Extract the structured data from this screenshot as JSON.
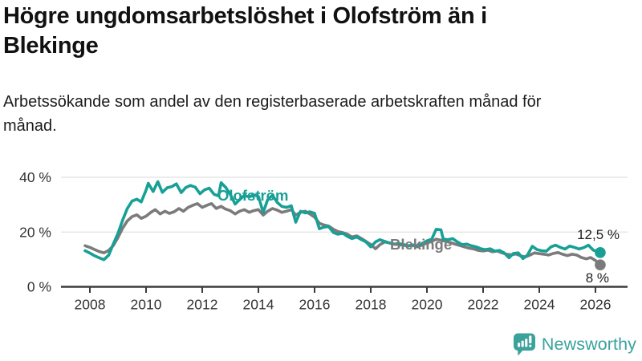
{
  "title": "Högre ungdomsarbetslöshet i Olofström än i Blekinge",
  "subtitle": "Arbetssökande som andel av den registerbaserade arbetskraften månad för månad.",
  "branding": {
    "logo_text": "Newsworthy",
    "logo_color": "#3AA29B",
    "logo_icon": "bar-chart-speech-bubble-icon"
  },
  "chart_data": {
    "type": "line",
    "title": "Högre ungdomsarbetslöshet i Olofström än i Blekinge",
    "subtitle": "Arbetssökande som andel av den registerbaserade arbetskraften månad för månad.",
    "xlabel": "",
    "ylabel": "",
    "x_unit": "year",
    "y_unit": "%",
    "xlim": [
      2007.7,
      2026.6
    ],
    "ylim": [
      0,
      44
    ],
    "grid": "horizontal",
    "legend_position": "inline",
    "x_ticks": [
      2008,
      2010,
      2012,
      2014,
      2016,
      2018,
      2020,
      2022,
      2024,
      2026
    ],
    "y_ticks": [
      {
        "value": 0,
        "label": "0 %"
      },
      {
        "value": 20,
        "label": "20 %"
      },
      {
        "value": 40,
        "label": "40 %"
      }
    ],
    "series": [
      {
        "id": "olofstrom",
        "name": "Olofström",
        "color": "#18A096",
        "end_value": 12.5,
        "end_label": "12,5 %",
        "points": [
          [
            2007.83,
            13.2
          ],
          [
            2008,
            12.3
          ],
          [
            2008.17,
            11.3
          ],
          [
            2008.33,
            10.6
          ],
          [
            2008.5,
            9.9
          ],
          [
            2008.67,
            11.6
          ],
          [
            2008.83,
            15.5
          ],
          [
            2009,
            19.5
          ],
          [
            2009.17,
            24.5
          ],
          [
            2009.33,
            28.5
          ],
          [
            2009.5,
            31.3
          ],
          [
            2009.67,
            32
          ],
          [
            2009.83,
            31
          ],
          [
            2010,
            35.3
          ],
          [
            2010.08,
            37.8
          ],
          [
            2010.25,
            34.8
          ],
          [
            2010.42,
            38.4
          ],
          [
            2010.58,
            34.5
          ],
          [
            2010.75,
            36.2
          ],
          [
            2010.92,
            36.6
          ],
          [
            2011.08,
            37.6
          ],
          [
            2011.25,
            34.4
          ],
          [
            2011.42,
            36.3
          ],
          [
            2011.58,
            37
          ],
          [
            2011.75,
            36.4
          ],
          [
            2011.92,
            34
          ],
          [
            2012.08,
            35.4
          ],
          [
            2012.25,
            36
          ],
          [
            2012.42,
            33.8
          ],
          [
            2012.58,
            33.2
          ],
          [
            2012.67,
            38
          ],
          [
            2012.83,
            36.4
          ],
          [
            2013,
            33.8
          ],
          [
            2013.17,
            30.2
          ],
          [
            2013.33,
            31.8
          ],
          [
            2013.5,
            33.4
          ],
          [
            2013.67,
            32.8
          ],
          [
            2013.83,
            33.6
          ],
          [
            2014,
            33
          ],
          [
            2014.17,
            27.2
          ],
          [
            2014.33,
            31.8
          ],
          [
            2014.5,
            33.4
          ],
          [
            2014.67,
            30.8
          ],
          [
            2014.83,
            29.4
          ],
          [
            2015,
            29
          ],
          [
            2015.17,
            29.6
          ],
          [
            2015.33,
            23.6
          ],
          [
            2015.5,
            27.6
          ],
          [
            2015.67,
            27
          ],
          [
            2015.83,
            27.4
          ],
          [
            2016,
            26.8
          ],
          [
            2016.17,
            21.2
          ],
          [
            2016.33,
            21.8
          ],
          [
            2016.5,
            22
          ],
          [
            2016.67,
            19.8
          ],
          [
            2016.83,
            19.2
          ],
          [
            2017,
            19.6
          ],
          [
            2017.17,
            18.4
          ],
          [
            2017.33,
            17.6
          ],
          [
            2017.5,
            18.2
          ],
          [
            2017.67,
            17.2
          ],
          [
            2017.83,
            16.4
          ],
          [
            2018,
            14.6
          ],
          [
            2018.17,
            16.4
          ],
          [
            2018.33,
            17.2
          ],
          [
            2018.5,
            16.6
          ],
          [
            2018.67,
            16
          ],
          [
            2018.83,
            15.6
          ],
          [
            2019,
            15.8
          ],
          [
            2019.17,
            15.4
          ],
          [
            2019.33,
            15
          ],
          [
            2019.5,
            15.3
          ],
          [
            2019.67,
            14.9
          ],
          [
            2019.83,
            15.8
          ],
          [
            2020,
            16.8
          ],
          [
            2020.17,
            17.4
          ],
          [
            2020.33,
            21
          ],
          [
            2020.5,
            20.8
          ],
          [
            2020.58,
            17.4
          ],
          [
            2020.75,
            17.2
          ],
          [
            2020.92,
            17.6
          ],
          [
            2021.08,
            16.4
          ],
          [
            2021.25,
            15.4
          ],
          [
            2021.42,
            15.6
          ],
          [
            2021.58,
            15
          ],
          [
            2021.75,
            14.6
          ],
          [
            2021.92,
            13.9
          ],
          [
            2022.08,
            13.6
          ],
          [
            2022.25,
            13.9
          ],
          [
            2022.42,
            13
          ],
          [
            2022.58,
            13.3
          ],
          [
            2022.75,
            12.4
          ],
          [
            2022.92,
            10.6
          ],
          [
            2023.08,
            12.2
          ],
          [
            2023.25,
            12.4
          ],
          [
            2023.42,
            10.3
          ],
          [
            2023.58,
            11.6
          ],
          [
            2023.75,
            14.8
          ],
          [
            2023.92,
            13.6
          ],
          [
            2024.08,
            13.2
          ],
          [
            2024.25,
            13
          ],
          [
            2024.42,
            14.6
          ],
          [
            2024.58,
            15.2
          ],
          [
            2024.75,
            14.4
          ],
          [
            2024.92,
            13.8
          ],
          [
            2025.08,
            14.9
          ],
          [
            2025.25,
            14.4
          ],
          [
            2025.42,
            13.8
          ],
          [
            2025.58,
            14.3
          ],
          [
            2025.75,
            15.2
          ],
          [
            2025.92,
            13.4
          ],
          [
            2026.08,
            12.9
          ],
          [
            2026.17,
            12.5
          ]
        ]
      },
      {
        "id": "blekinge",
        "name": "Blekinge",
        "color": "#7B7B7B",
        "end_value": 8,
        "end_label": "8 %",
        "points": [
          [
            2007.83,
            15
          ],
          [
            2008,
            14.4
          ],
          [
            2008.17,
            13.6
          ],
          [
            2008.33,
            12.9
          ],
          [
            2008.5,
            12.4
          ],
          [
            2008.67,
            13.3
          ],
          [
            2008.83,
            15
          ],
          [
            2009,
            18
          ],
          [
            2009.17,
            21.5
          ],
          [
            2009.33,
            24
          ],
          [
            2009.5,
            25.6
          ],
          [
            2009.67,
            26.3
          ],
          [
            2009.83,
            25
          ],
          [
            2010,
            25.8
          ],
          [
            2010.17,
            27.2
          ],
          [
            2010.33,
            28.2
          ],
          [
            2010.5,
            26.6
          ],
          [
            2010.67,
            27.6
          ],
          [
            2010.83,
            26.8
          ],
          [
            2011,
            27.4
          ],
          [
            2011.17,
            28.6
          ],
          [
            2011.33,
            27.6
          ],
          [
            2011.5,
            29
          ],
          [
            2011.67,
            29.8
          ],
          [
            2011.83,
            30.4
          ],
          [
            2012,
            29
          ],
          [
            2012.17,
            29.8
          ],
          [
            2012.33,
            30.4
          ],
          [
            2012.5,
            28.6
          ],
          [
            2012.67,
            29.4
          ],
          [
            2012.83,
            28.4
          ],
          [
            2013,
            27.8
          ],
          [
            2013.17,
            26.6
          ],
          [
            2013.33,
            27.6
          ],
          [
            2013.5,
            28.2
          ],
          [
            2013.67,
            27.2
          ],
          [
            2013.83,
            27.8
          ],
          [
            2014,
            28.2
          ],
          [
            2014.17,
            26.2
          ],
          [
            2014.33,
            27.6
          ],
          [
            2014.5,
            28.6
          ],
          [
            2014.67,
            28
          ],
          [
            2014.83,
            27.2
          ],
          [
            2015,
            27.6
          ],
          [
            2015.17,
            28.2
          ],
          [
            2015.33,
            26.2
          ],
          [
            2015.5,
            27.2
          ],
          [
            2015.67,
            27.6
          ],
          [
            2015.83,
            26.6
          ],
          [
            2016,
            25.4
          ],
          [
            2016.17,
            23.2
          ],
          [
            2016.33,
            22.6
          ],
          [
            2016.5,
            22.2
          ],
          [
            2016.67,
            21
          ],
          [
            2016.83,
            20.2
          ],
          [
            2017,
            19.8
          ],
          [
            2017.17,
            19.2
          ],
          [
            2017.33,
            18.2
          ],
          [
            2017.5,
            18.6
          ],
          [
            2017.67,
            17.6
          ],
          [
            2017.83,
            16.6
          ],
          [
            2018,
            15.4
          ],
          [
            2018.17,
            13.9
          ],
          [
            2018.33,
            15.4
          ],
          [
            2018.5,
            16.4
          ],
          [
            2018.67,
            16
          ],
          [
            2018.83,
            15.6
          ],
          [
            2019,
            15.4
          ],
          [
            2019.17,
            15.2
          ],
          [
            2019.33,
            14.9
          ],
          [
            2019.5,
            15.1
          ],
          [
            2019.67,
            14.6
          ],
          [
            2019.83,
            15.2
          ],
          [
            2020,
            16
          ],
          [
            2020.17,
            16.6
          ],
          [
            2020.33,
            17.4
          ],
          [
            2020.5,
            17
          ],
          [
            2020.67,
            16.6
          ],
          [
            2020.83,
            16.2
          ],
          [
            2021,
            15.6
          ],
          [
            2021.17,
            15.1
          ],
          [
            2021.33,
            14.6
          ],
          [
            2021.5,
            14.1
          ],
          [
            2021.67,
            13.8
          ],
          [
            2021.83,
            13.3
          ],
          [
            2022,
            13.1
          ],
          [
            2022.17,
            13.4
          ],
          [
            2022.33,
            12.8
          ],
          [
            2022.5,
            13.1
          ],
          [
            2022.67,
            12.4
          ],
          [
            2022.83,
            11.9
          ],
          [
            2023,
            11.7
          ],
          [
            2023.17,
            12
          ],
          [
            2023.33,
            11.3
          ],
          [
            2023.5,
            10.9
          ],
          [
            2023.67,
            11.6
          ],
          [
            2023.83,
            12.4
          ],
          [
            2024,
            12.1
          ],
          [
            2024.17,
            11.9
          ],
          [
            2024.33,
            11.6
          ],
          [
            2024.5,
            12.2
          ],
          [
            2024.67,
            12.5
          ],
          [
            2024.83,
            11.9
          ],
          [
            2025,
            11.4
          ],
          [
            2025.17,
            11.9
          ],
          [
            2025.33,
            11.6
          ],
          [
            2025.5,
            10.7
          ],
          [
            2025.67,
            10.2
          ],
          [
            2025.83,
            10.7
          ],
          [
            2026,
            9.6
          ],
          [
            2026.17,
            8
          ]
        ]
      }
    ]
  }
}
